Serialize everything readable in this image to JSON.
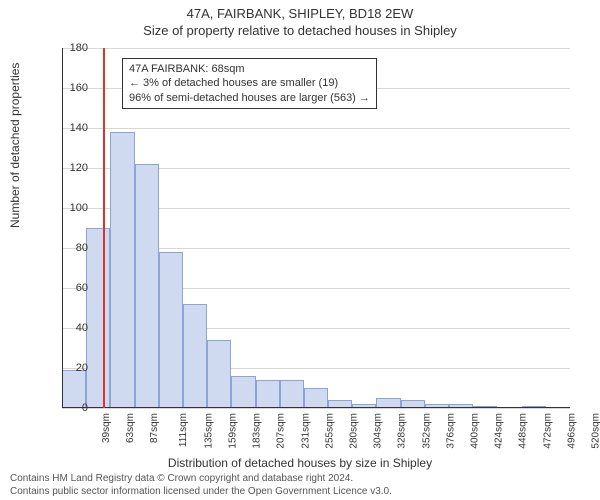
{
  "titles": {
    "main": "47A, FAIRBANK, SHIPLEY, BD18 2EW",
    "sub": "Size of property relative to detached houses in Shipley"
  },
  "axes": {
    "ylabel": "Number of detached properties",
    "xlabel": "Distribution of detached houses by size in Shipley",
    "ylim": [
      0,
      180
    ],
    "ytick_step": 20,
    "yticks": [
      0,
      20,
      40,
      60,
      80,
      100,
      120,
      140,
      160,
      180
    ]
  },
  "chart": {
    "type": "histogram",
    "bar_fill": "#cfd9f0",
    "bar_stroke": "#8ea3d6",
    "grid_color": "#d7d7d7",
    "axis_color": "#333333",
    "background_color": "#ffffff",
    "marker_color": "#e03030",
    "marker_x_sqm": 68,
    "bin_start": 27,
    "bin_width_sqm": 24,
    "categories": [
      "39sqm",
      "63sqm",
      "87sqm",
      "111sqm",
      "135sqm",
      "159sqm",
      "183sqm",
      "207sqm",
      "231sqm",
      "255sqm",
      "280sqm",
      "304sqm",
      "328sqm",
      "352sqm",
      "376sqm",
      "400sqm",
      "424sqm",
      "448sqm",
      "472sqm",
      "496sqm",
      "520sqm"
    ],
    "values": [
      19,
      90,
      138,
      122,
      78,
      52,
      34,
      16,
      14,
      14,
      10,
      4,
      2,
      5,
      4,
      2,
      2,
      1,
      0,
      1,
      0
    ]
  },
  "annotation": {
    "line1": "47A FAIRBANK: 68sqm",
    "line2": "← 3% of detached houses are smaller (19)",
    "line3": "96% of semi-detached houses are larger (563) →"
  },
  "attribution": {
    "line1": "Contains HM Land Registry data © Crown copyright and database right 2024.",
    "line2": "Contains public sector information licensed under the Open Government Licence v3.0."
  }
}
